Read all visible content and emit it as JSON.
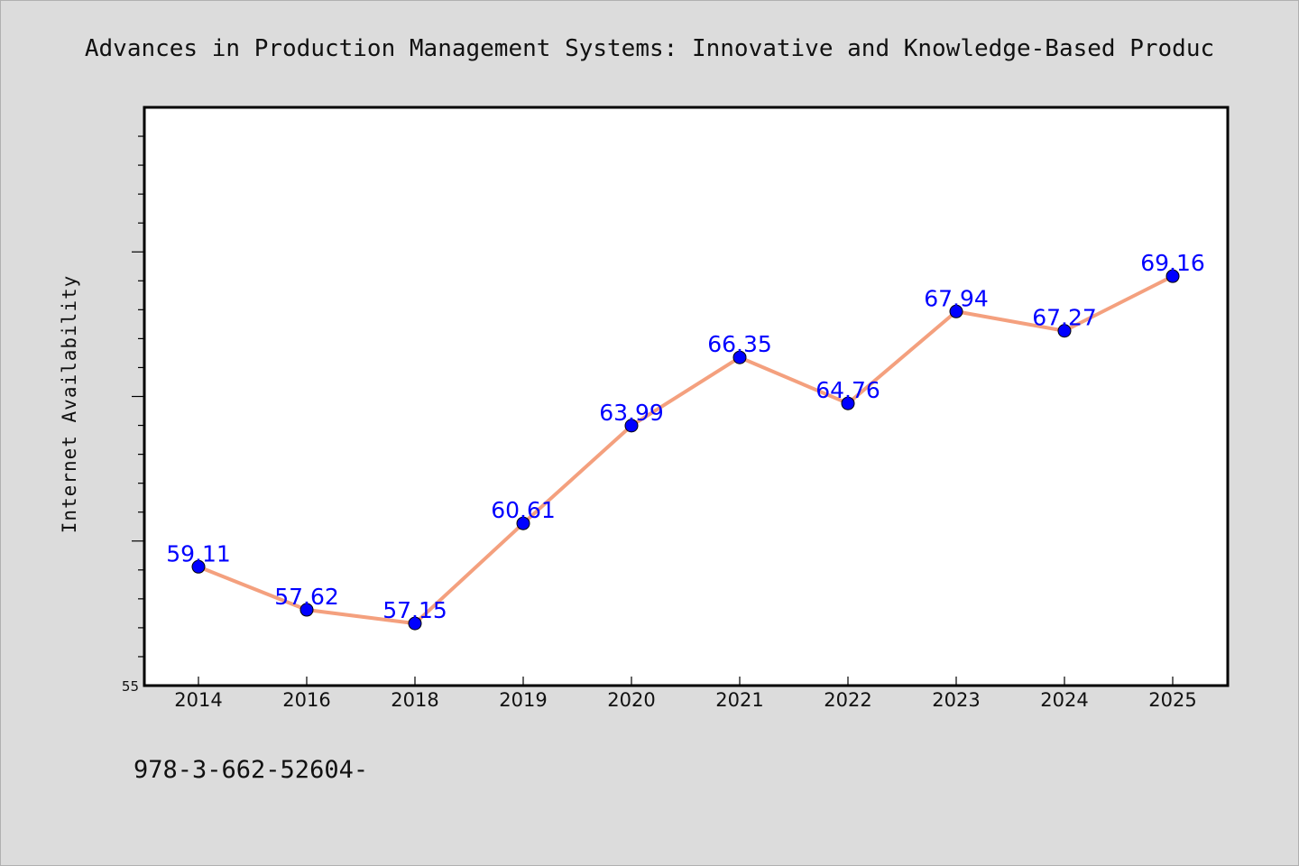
{
  "chart_data": {
    "type": "line",
    "title": "Advances in Production Management Systems: Innovative and Knowledge-Based Produc",
    "xlabel": "",
    "ylabel": "Internet Availability",
    "categories": [
      "2014",
      "2016",
      "2018",
      "2019",
      "2020",
      "2021",
      "2022",
      "2023",
      "2024",
      "2025"
    ],
    "series": [
      {
        "values": [
          59.11,
          57.62,
          57.15,
          60.61,
          63.99,
          66.35,
          64.76,
          67.94,
          67.27,
          69.16
        ]
      }
    ],
    "value_labels": [
      "59.11",
      "57.62",
      "57.15",
      "60.61",
      "63.99",
      "66.35",
      "64.76",
      "67.94",
      "67.27",
      "69.16"
    ],
    "ylim": [
      55,
      75
    ],
    "y_tick_labels": [
      "55"
    ],
    "grid": false,
    "colors": {
      "line": "#f4a07e",
      "marker": "#0000ff",
      "label": "#0000ff",
      "plot_background": "#ffffff",
      "page_background": "#dcdcdc"
    }
  },
  "footer": {
    "text": "978-3-662-52604-"
  }
}
